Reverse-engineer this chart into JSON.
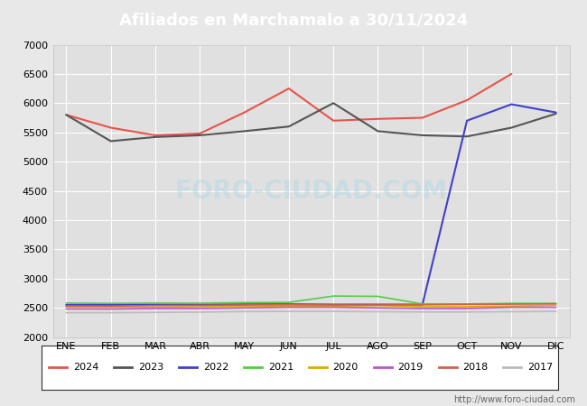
{
  "title": "Afiliados en Marchamalo a 30/11/2024",
  "header_bg": "#4a7fc1",
  "months": [
    "ENE",
    "FEB",
    "MAR",
    "ABR",
    "MAY",
    "JUN",
    "JUL",
    "AGO",
    "SEP",
    "OCT",
    "NOV",
    "DIC"
  ],
  "ylim": [
    2000,
    7000
  ],
  "yticks": [
    2000,
    2500,
    3000,
    3500,
    4000,
    4500,
    5000,
    5500,
    6000,
    6500,
    7000
  ],
  "series": {
    "2024": {
      "color": "#e8534a",
      "linewidth": 1.5,
      "data": [
        5800,
        5580,
        5450,
        5480,
        5840,
        6250,
        5700,
        5730,
        5750,
        6050,
        6500
      ]
    },
    "2023": {
      "color": "#555555",
      "linewidth": 1.5,
      "data": [
        5800,
        5350,
        5420,
        5450,
        5520,
        5600,
        6000,
        5520,
        5450,
        5430,
        5580,
        5820
      ]
    },
    "2022": {
      "color": "#4040cc",
      "linewidth": 1.5,
      "data": [
        2550,
        2550,
        2555,
        2555,
        2560,
        2560,
        2555,
        2555,
        2555,
        5700,
        5980,
        5840
      ]
    },
    "2021": {
      "color": "#55cc44",
      "linewidth": 1.2,
      "data": [
        2580,
        2575,
        2580,
        2578,
        2588,
        2592,
        2700,
        2695,
        2565,
        2565,
        2575,
        2575
      ]
    },
    "2020": {
      "color": "#ddaa00",
      "linewidth": 1.2,
      "data": [
        2510,
        2508,
        2510,
        2518,
        2528,
        2528,
        2528,
        2538,
        2518,
        2518,
        2528,
        2545
      ]
    },
    "2019": {
      "color": "#bb55cc",
      "linewidth": 1.2,
      "data": [
        2480,
        2478,
        2488,
        2488,
        2498,
        2508,
        2508,
        2498,
        2488,
        2488,
        2508,
        2508
      ]
    },
    "2018": {
      "color": "#cc6644",
      "linewidth": 1.2,
      "data": [
        2530,
        2528,
        2538,
        2542,
        2548,
        2552,
        2548,
        2548,
        2552,
        2558,
        2562,
        2568
      ]
    },
    "2017": {
      "color": "#bbbbbb",
      "linewidth": 1.2,
      "data": [
        2415,
        2415,
        2420,
        2425,
        2435,
        2438,
        2438,
        2432,
        2428,
        2428,
        2432,
        2438
      ]
    }
  },
  "watermark": "FORO-CIUDAD.COM",
  "url": "http://www.foro-ciudad.com",
  "fig_bg": "#e8e8e8",
  "plot_bg": "#e0e0e0",
  "grid_color": "#ffffff",
  "legend_years": [
    "2024",
    "2023",
    "2022",
    "2021",
    "2020",
    "2019",
    "2018",
    "2017"
  ]
}
